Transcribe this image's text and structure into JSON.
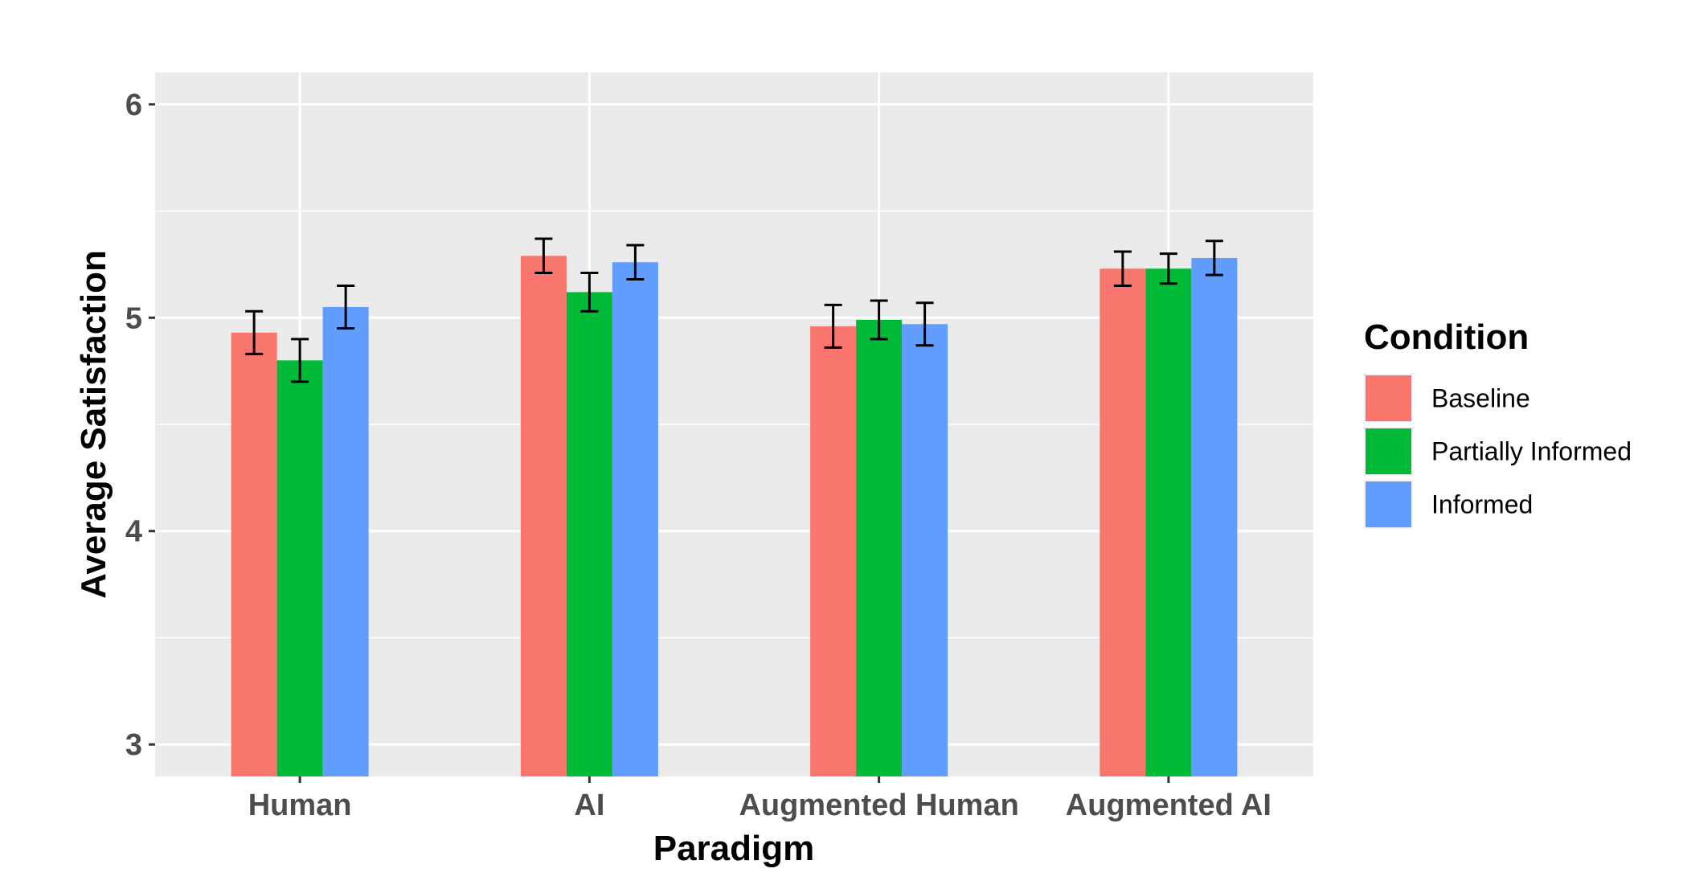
{
  "chart_data": {
    "type": "bar",
    "title": "",
    "xlabel": "Paradigm",
    "ylabel": "Average Satisfaction",
    "categories": [
      "Human",
      "AI",
      "Augmented Human",
      "Augmented AI"
    ],
    "ylim": [
      2.85,
      6.15
    ],
    "yticks": [
      3,
      4,
      5,
      6
    ],
    "grid": true,
    "legend": {
      "title": "Condition",
      "position": "right"
    },
    "series": [
      {
        "name": "Baseline",
        "color": "#F8766D",
        "values": [
          4.93,
          5.29,
          4.96,
          5.23
        ],
        "err": [
          0.1,
          0.08,
          0.1,
          0.08
        ]
      },
      {
        "name": "Partially Informed",
        "color": "#00BA38",
        "values": [
          4.8,
          5.12,
          4.99,
          5.23
        ],
        "err": [
          0.1,
          0.09,
          0.09,
          0.07
        ]
      },
      {
        "name": "Informed",
        "color": "#619CFF",
        "values": [
          5.05,
          5.26,
          4.97,
          5.28
        ],
        "err": [
          0.1,
          0.08,
          0.1,
          0.08
        ]
      }
    ]
  }
}
